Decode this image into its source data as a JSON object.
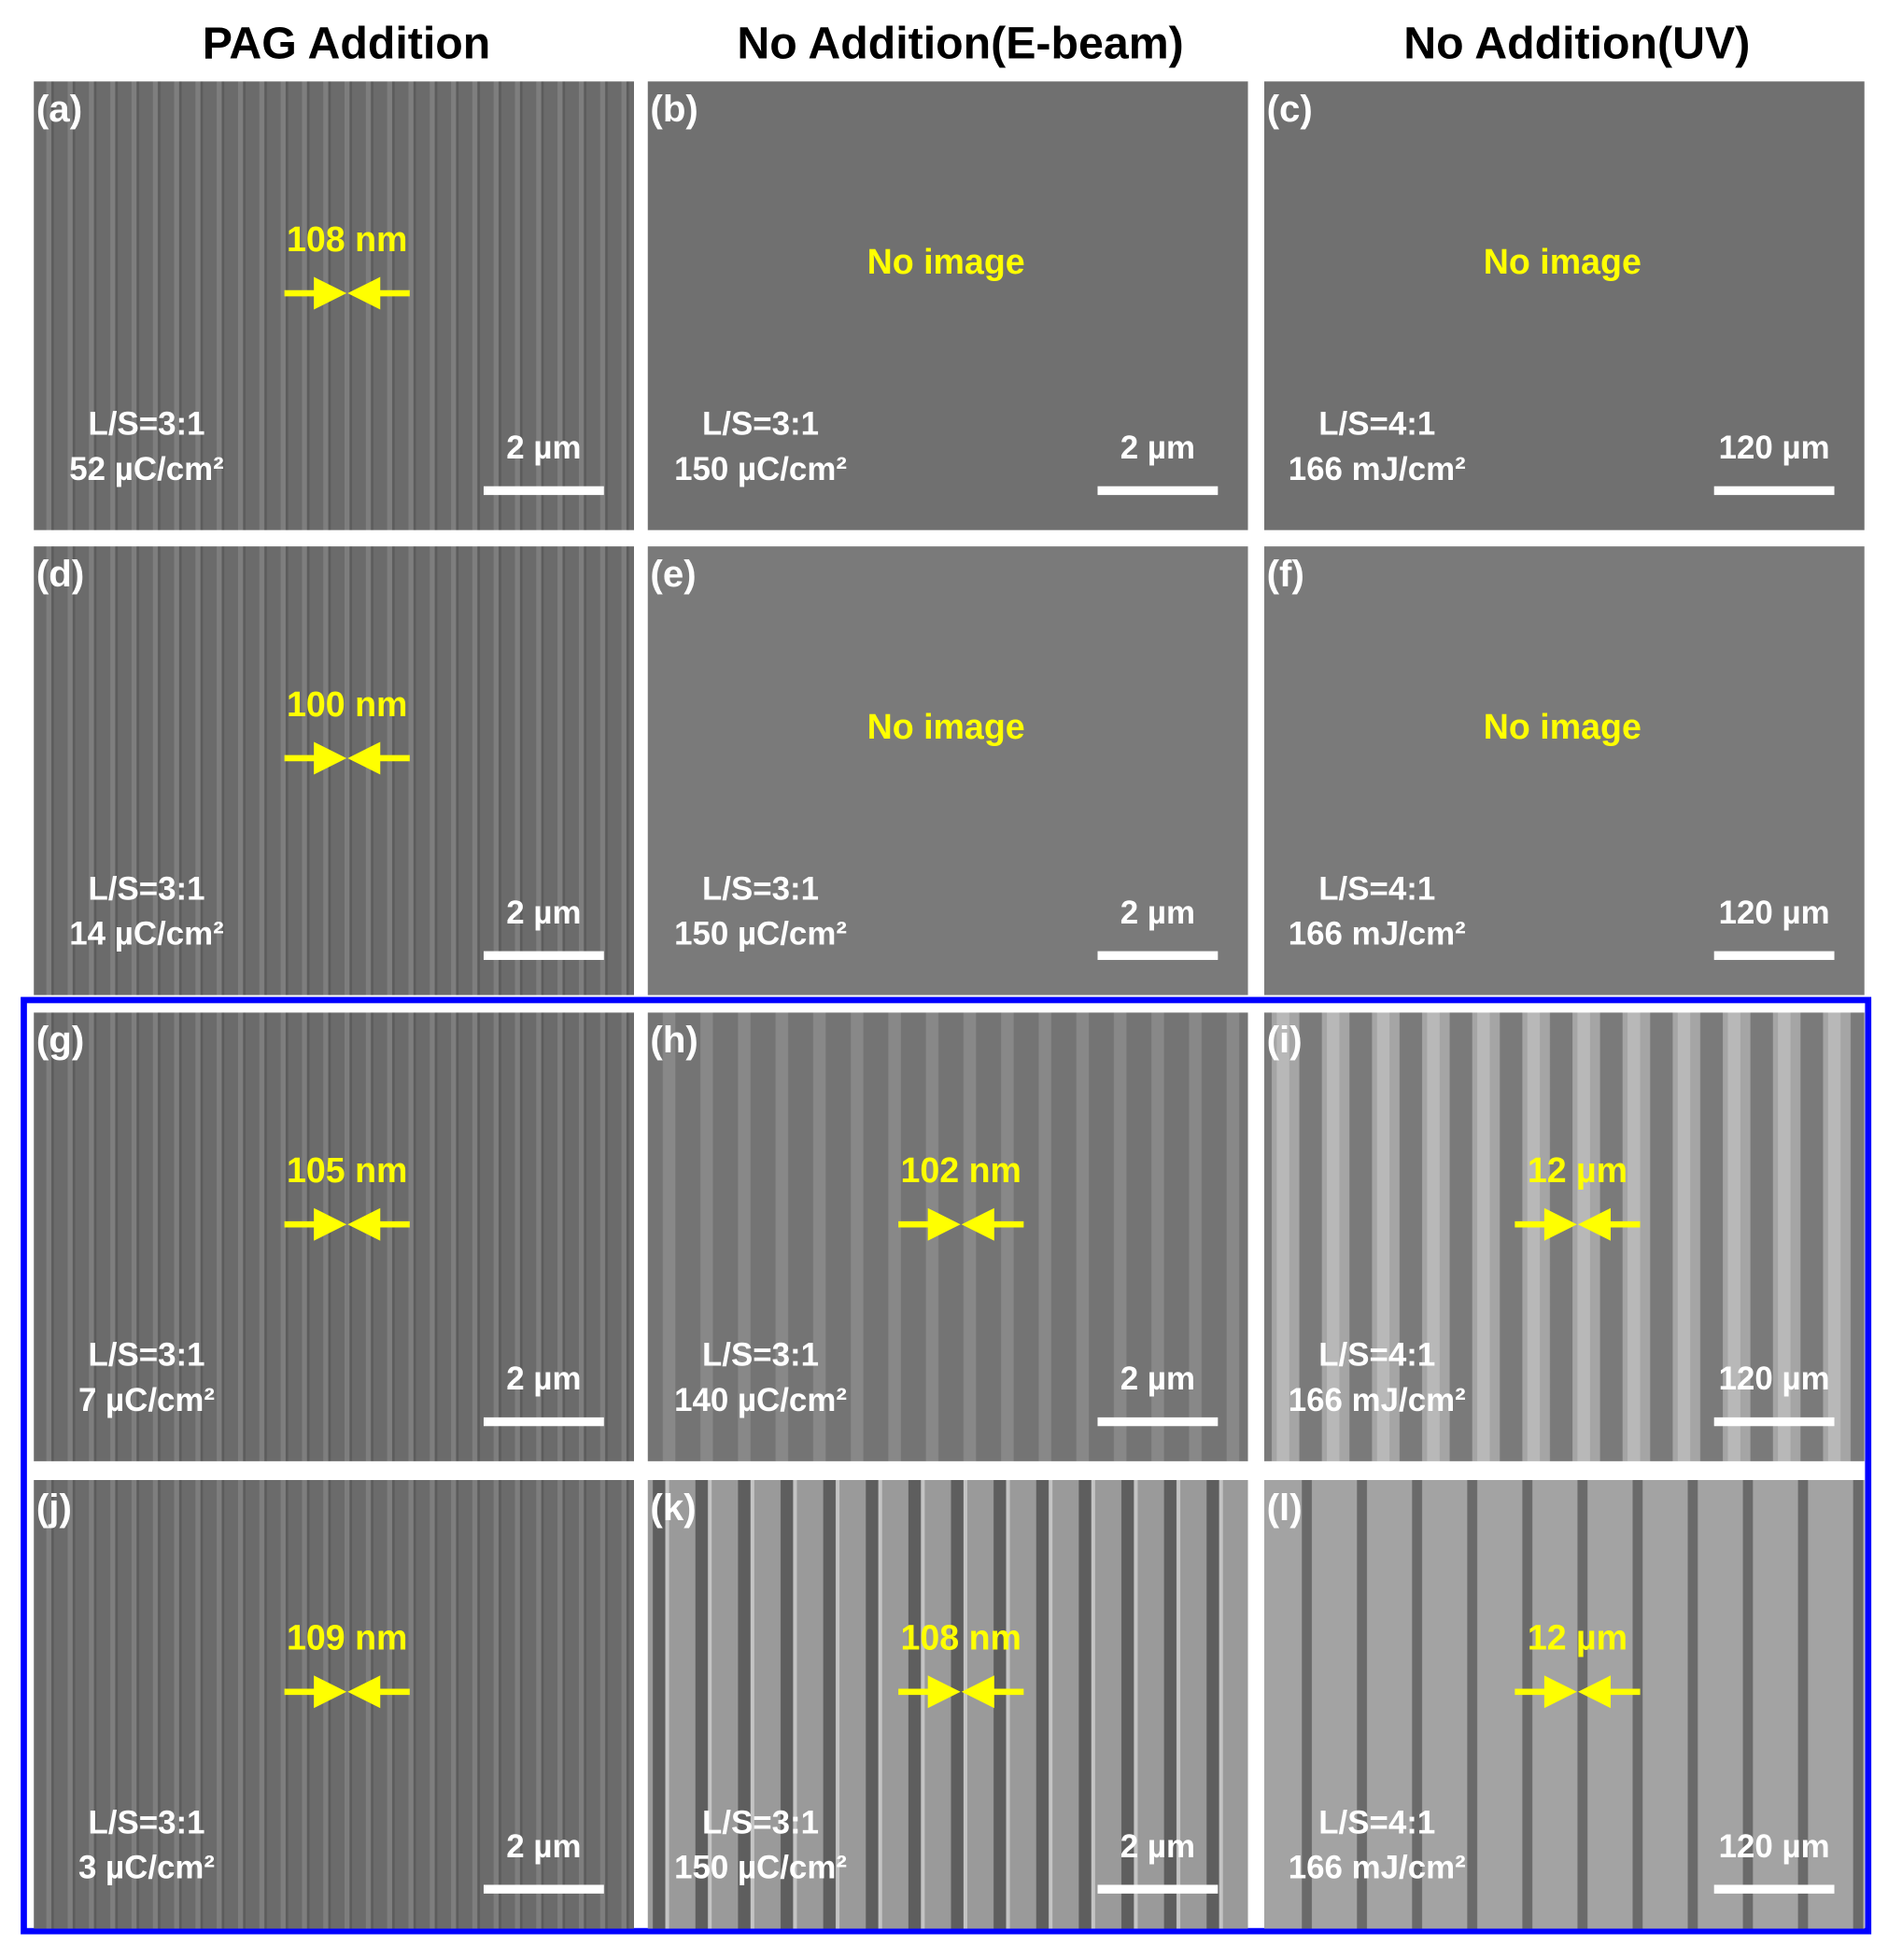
{
  "columns": [
    "PAG Addition",
    "No Addition(E-beam)",
    "No Addition(UV)"
  ],
  "panels": [
    {
      "label": "(a)",
      "note": "108 nm",
      "ratio": "L/S=3:1",
      "dose": "52 µC/cm²",
      "scale": "2 µm"
    },
    {
      "label": "(b)",
      "note": "No image",
      "ratio": "L/S=3:1",
      "dose": "150 µC/cm²",
      "scale": "2 µm"
    },
    {
      "label": "(c)",
      "note": "No image",
      "ratio": "L/S=4:1",
      "dose": "166 mJ/cm²",
      "scale": "120 µm"
    },
    {
      "label": "(d)",
      "note": "100 nm",
      "ratio": "L/S=3:1",
      "dose": "14 µC/cm²",
      "scale": "2 µm"
    },
    {
      "label": "(e)",
      "note": "No image",
      "ratio": "L/S=3:1",
      "dose": "150 µC/cm²",
      "scale": "2 µm"
    },
    {
      "label": "(f)",
      "note": "No image",
      "ratio": "L/S=4:1",
      "dose": "166 mJ/cm²",
      "scale": "120 µm"
    },
    {
      "label": "(g)",
      "note": "105 nm",
      "ratio": "L/S=3:1",
      "dose": "7 µC/cm²",
      "scale": "2 µm"
    },
    {
      "label": "(h)",
      "note": "102 nm",
      "ratio": "L/S=3:1",
      "dose": "140 µC/cm²",
      "scale": "2 µm"
    },
    {
      "label": "(i)",
      "note": "12 µm",
      "ratio": "L/S=4:1",
      "dose": "166 mJ/cm²",
      "scale": "120 µm"
    },
    {
      "label": "(j)",
      "note": "109 nm",
      "ratio": "L/S=3:1",
      "dose": "3 µC/cm²",
      "scale": "2 µm"
    },
    {
      "label": "(k)",
      "note": "108 nm",
      "ratio": "L/S=3:1",
      "dose": "150 µC/cm²",
      "scale": "2 µm"
    },
    {
      "label": "(l)",
      "note": "12 µm",
      "ratio": "L/S=4:1",
      "dose": "166 mJ/cm²",
      "scale": "120 µm"
    }
  ]
}
